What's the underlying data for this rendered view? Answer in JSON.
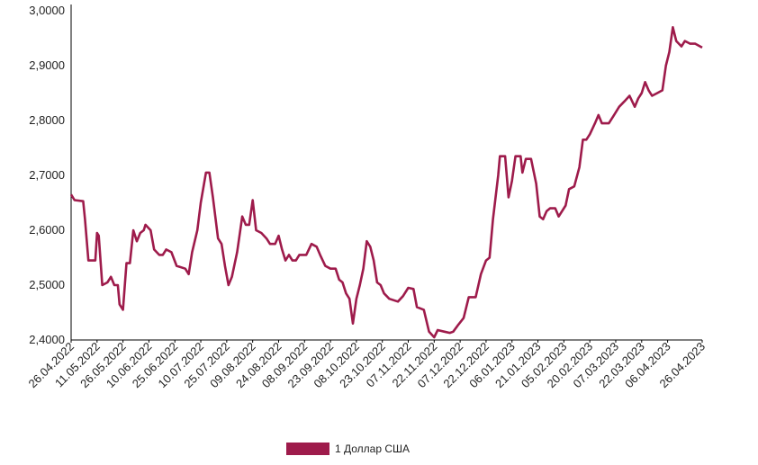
{
  "chart_data": {
    "type": "line",
    "y_ticks": [
      "2,4000",
      "2,5000",
      "2,6000",
      "2,7000",
      "2,8000",
      "2,9000",
      "3,0000"
    ],
    "ylim": [
      2.4,
      3.0
    ],
    "x_ticks": [
      "26.04.2022",
      "11.05.2022",
      "26.05.2022",
      "10.06.2022",
      "25.06.2022",
      "10.07.2022",
      "25.07.2022",
      "09.08.2022",
      "24.08.2022",
      "08.09.2022",
      "23.09.2022",
      "08.10.2022",
      "23.10.2022",
      "07.11.2022",
      "22.11.2022",
      "07.12.2022",
      "22.12.2022",
      "06.01.2023",
      "21.01.2023",
      "05.02.2023",
      "20.02.2023",
      "07.03.2023",
      "22.03.2023",
      "06.04.2023",
      "26.04.2023"
    ],
    "xlim": [
      "2022-04-26",
      "2023-04-26"
    ],
    "grid": false,
    "legend_position": "bottom",
    "series": [
      {
        "name": "1 Доллар США",
        "color": "#9e1b4b",
        "points": [
          [
            "2022-04-26",
            2.665
          ],
          [
            "2022-04-28",
            2.655
          ],
          [
            "2022-05-03",
            2.653
          ],
          [
            "2022-05-04",
            2.62
          ],
          [
            "2022-05-06",
            2.545
          ],
          [
            "2022-05-10",
            2.545
          ],
          [
            "2022-05-11",
            2.595
          ],
          [
            "2022-05-12",
            2.59
          ],
          [
            "2022-05-14",
            2.5
          ],
          [
            "2022-05-17",
            2.505
          ],
          [
            "2022-05-19",
            2.515
          ],
          [
            "2022-05-21",
            2.5
          ],
          [
            "2022-05-23",
            2.5
          ],
          [
            "2022-05-24",
            2.465
          ],
          [
            "2022-05-26",
            2.455
          ],
          [
            "2022-05-28",
            2.54
          ],
          [
            "2022-05-30",
            2.54
          ],
          [
            "2022-06-01",
            2.6
          ],
          [
            "2022-06-03",
            2.58
          ],
          [
            "2022-06-05",
            2.595
          ],
          [
            "2022-06-07",
            2.6
          ],
          [
            "2022-06-08",
            2.61
          ],
          [
            "2022-06-11",
            2.6
          ],
          [
            "2022-06-13",
            2.565
          ],
          [
            "2022-06-16",
            2.555
          ],
          [
            "2022-06-18",
            2.555
          ],
          [
            "2022-06-20",
            2.565
          ],
          [
            "2022-06-23",
            2.56
          ],
          [
            "2022-06-26",
            2.535
          ],
          [
            "2022-07-01",
            2.53
          ],
          [
            "2022-07-03",
            2.52
          ],
          [
            "2022-07-05",
            2.56
          ],
          [
            "2022-07-08",
            2.6
          ],
          [
            "2022-07-10",
            2.65
          ],
          [
            "2022-07-13",
            2.705
          ],
          [
            "2022-07-15",
            2.705
          ],
          [
            "2022-07-17",
            2.66
          ],
          [
            "2022-07-20",
            2.585
          ],
          [
            "2022-07-22",
            2.575
          ],
          [
            "2022-07-24",
            2.535
          ],
          [
            "2022-07-26",
            2.5
          ],
          [
            "2022-07-28",
            2.515
          ],
          [
            "2022-07-31",
            2.56
          ],
          [
            "2022-08-03",
            2.625
          ],
          [
            "2022-08-05",
            2.61
          ],
          [
            "2022-08-07",
            2.61
          ],
          [
            "2022-08-09",
            2.655
          ],
          [
            "2022-08-11",
            2.6
          ],
          [
            "2022-08-14",
            2.595
          ],
          [
            "2022-08-17",
            2.585
          ],
          [
            "2022-08-19",
            2.575
          ],
          [
            "2022-08-22",
            2.575
          ],
          [
            "2022-08-24",
            2.59
          ],
          [
            "2022-08-26",
            2.565
          ],
          [
            "2022-08-28",
            2.545
          ],
          [
            "2022-08-30",
            2.555
          ],
          [
            "2022-09-01",
            2.545
          ],
          [
            "2022-09-03",
            2.545
          ],
          [
            "2022-09-05",
            2.555
          ],
          [
            "2022-09-09",
            2.555
          ],
          [
            "2022-09-12",
            2.575
          ],
          [
            "2022-09-15",
            2.57
          ],
          [
            "2022-09-17",
            2.555
          ],
          [
            "2022-09-20",
            2.535
          ],
          [
            "2022-09-23",
            2.53
          ],
          [
            "2022-09-26",
            2.53
          ],
          [
            "2022-09-28",
            2.51
          ],
          [
            "2022-09-30",
            2.505
          ],
          [
            "2022-10-02",
            2.485
          ],
          [
            "2022-10-04",
            2.475
          ],
          [
            "2022-10-06",
            2.43
          ],
          [
            "2022-10-08",
            2.475
          ],
          [
            "2022-10-10",
            2.5
          ],
          [
            "2022-10-12",
            2.53
          ],
          [
            "2022-10-14",
            2.58
          ],
          [
            "2022-10-16",
            2.57
          ],
          [
            "2022-10-18",
            2.545
          ],
          [
            "2022-10-20",
            2.505
          ],
          [
            "2022-10-22",
            2.5
          ],
          [
            "2022-10-24",
            2.485
          ],
          [
            "2022-10-27",
            2.475
          ],
          [
            "2022-11-01",
            2.47
          ],
          [
            "2022-11-04",
            2.48
          ],
          [
            "2022-11-07",
            2.495
          ],
          [
            "2022-11-10",
            2.493
          ],
          [
            "2022-11-12",
            2.46
          ],
          [
            "2022-11-16",
            2.455
          ],
          [
            "2022-11-19",
            2.415
          ],
          [
            "2022-11-22",
            2.405
          ],
          [
            "2022-11-24",
            2.418
          ],
          [
            "2022-11-28",
            2.415
          ],
          [
            "2022-12-01",
            2.413
          ],
          [
            "2022-12-03",
            2.415
          ],
          [
            "2022-12-06",
            2.428
          ],
          [
            "2022-12-09",
            2.44
          ],
          [
            "2022-12-12",
            2.478
          ],
          [
            "2022-12-16",
            2.478
          ],
          [
            "2022-12-19",
            2.52
          ],
          [
            "2022-12-22",
            2.545
          ],
          [
            "2022-12-24",
            2.55
          ],
          [
            "2022-12-26",
            2.62
          ],
          [
            "2022-12-29",
            2.7
          ],
          [
            "2022-12-30",
            2.735
          ],
          [
            "2023-01-02",
            2.735
          ],
          [
            "2023-01-04",
            2.66
          ],
          [
            "2023-01-06",
            2.69
          ],
          [
            "2023-01-08",
            2.735
          ],
          [
            "2023-01-11",
            2.735
          ],
          [
            "2023-01-12",
            2.705
          ],
          [
            "2023-01-14",
            2.73
          ],
          [
            "2023-01-17",
            2.73
          ],
          [
            "2023-01-20",
            2.685
          ],
          [
            "2023-01-22",
            2.625
          ],
          [
            "2023-01-24",
            2.62
          ],
          [
            "2023-01-26",
            2.635
          ],
          [
            "2023-01-28",
            2.64
          ],
          [
            "2023-01-31",
            2.64
          ],
          [
            "2023-02-02",
            2.625
          ],
          [
            "2023-02-06",
            2.645
          ],
          [
            "2023-02-08",
            2.675
          ],
          [
            "2023-02-11",
            2.68
          ],
          [
            "2023-02-14",
            2.715
          ],
          [
            "2023-02-16",
            2.765
          ],
          [
            "2023-02-18",
            2.765
          ],
          [
            "2023-02-20",
            2.775
          ],
          [
            "2023-02-23",
            2.795
          ],
          [
            "2023-02-25",
            2.81
          ],
          [
            "2023-02-27",
            2.795
          ],
          [
            "2023-03-03",
            2.795
          ],
          [
            "2023-03-06",
            2.81
          ],
          [
            "2023-03-09",
            2.825
          ],
          [
            "2023-03-12",
            2.835
          ],
          [
            "2023-03-15",
            2.845
          ],
          [
            "2023-03-18",
            2.825
          ],
          [
            "2023-03-20",
            2.84
          ],
          [
            "2023-03-22",
            2.85
          ],
          [
            "2023-03-24",
            2.87
          ],
          [
            "2023-03-26",
            2.855
          ],
          [
            "2023-03-28",
            2.845
          ],
          [
            "2023-03-31",
            2.85
          ],
          [
            "2023-04-03",
            2.855
          ],
          [
            "2023-04-05",
            2.9
          ],
          [
            "2023-04-07",
            2.925
          ],
          [
            "2023-04-09",
            2.97
          ],
          [
            "2023-04-11",
            2.945
          ],
          [
            "2023-04-14",
            2.935
          ],
          [
            "2023-04-16",
            2.945
          ],
          [
            "2023-04-19",
            2.94
          ],
          [
            "2023-04-22",
            2.94
          ],
          [
            "2023-04-26",
            2.933
          ]
        ]
      }
    ]
  }
}
